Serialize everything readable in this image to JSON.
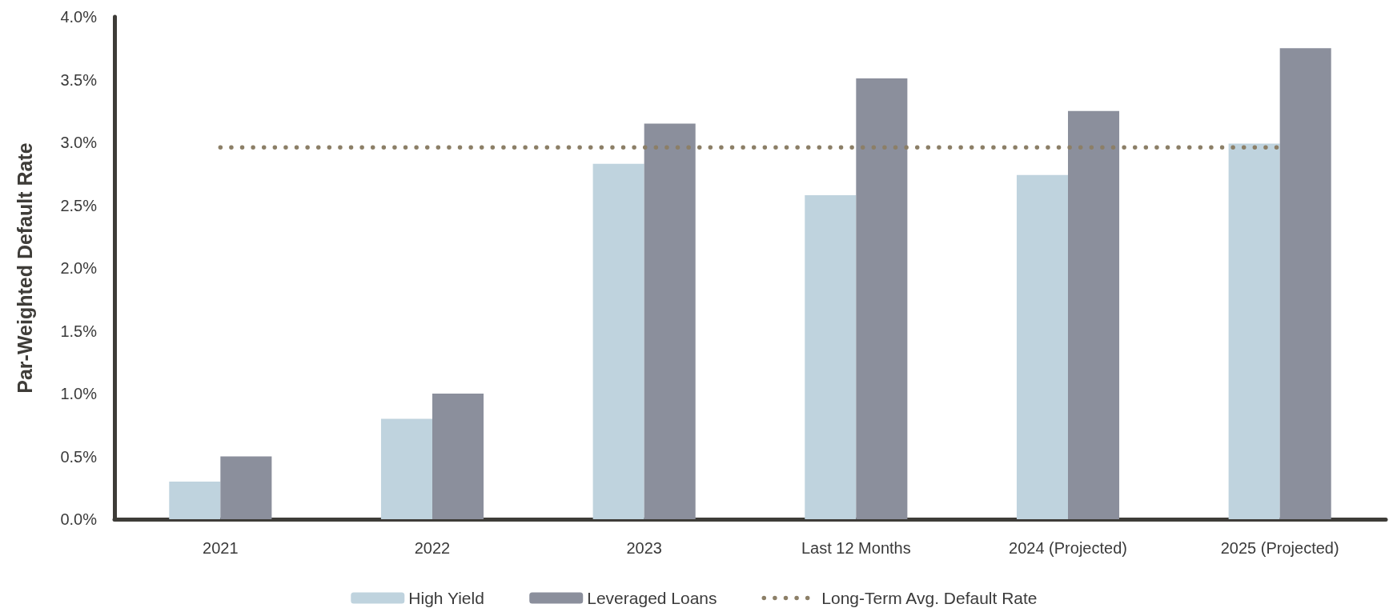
{
  "chart_data": {
    "type": "bar",
    "ylabel": "Par-Weighted Default Rate",
    "categories": [
      "2021",
      "2022",
      "2023",
      "Last 12 Months",
      "2024 (Projected)",
      "2025 (Projected)"
    ],
    "series": [
      {
        "name": "High Yield",
        "color": "#bfd3de",
        "values": [
          0.3,
          0.8,
          2.83,
          2.58,
          2.74,
          2.99
        ]
      },
      {
        "name": "Leveraged Loans",
        "color": "#8b8f9c",
        "values": [
          0.5,
          1.0,
          3.15,
          3.51,
          3.25,
          3.75
        ]
      },
      {
        "name": "Long-Term Avg. Default Rate",
        "type": "line",
        "color": "#8c7f67",
        "values": [
          2.96,
          2.96,
          2.96,
          2.96,
          2.96,
          2.96
        ]
      }
    ],
    "ylim": [
      0,
      4.0
    ],
    "yticks": [
      {
        "value": 0,
        "label": "0.0%"
      },
      {
        "value": 0.5,
        "label": "0.5%"
      },
      {
        "value": 1.0,
        "label": "1.0%"
      },
      {
        "value": 1.5,
        "label": "1.5%"
      },
      {
        "value": 2.0,
        "label": "2.0%"
      },
      {
        "value": 2.5,
        "label": "2.5%"
      },
      {
        "value": 3.0,
        "label": "3.0%"
      },
      {
        "value": 3.5,
        "label": "3.5%"
      },
      {
        "value": 4.0,
        "label": "4.0%"
      }
    ],
    "grid": false,
    "legend": "bottom",
    "line_style": "dotted",
    "marker": "none"
  }
}
